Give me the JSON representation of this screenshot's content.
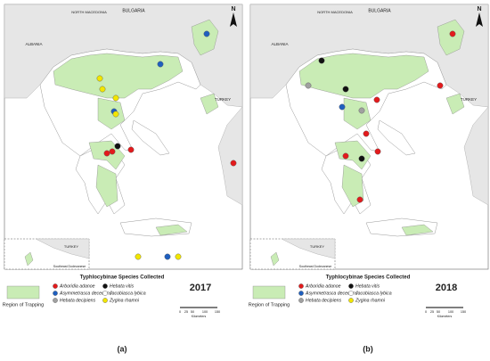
{
  "map_labels": {
    "bulgaria": "BULGARIA",
    "north_macedonia": "NORTH MACEDONIA",
    "albania": "ALBANIA",
    "turkey": "TURKEY",
    "inset_turkey": "TURKEY",
    "north": "N",
    "inset": "Southeast Dodecanese"
  },
  "legend": {
    "title": "Typhlocybinae Species Collected",
    "region": "Region of Trapping",
    "species": [
      {
        "name": "Arboridia adanoe",
        "color": "#e31a1c"
      },
      {
        "name": "Asymmetrasca decedens",
        "color": "#1f5fbf"
      },
      {
        "name": "Hebata decipiens",
        "color": "#a0a0a0"
      },
      {
        "name": "Hebata vitis",
        "color": "#111111"
      },
      {
        "name": "Jacobiasca lybica",
        "color": "#ffffff"
      },
      {
        "name": "Zygina rhamni",
        "color": "#f2e600"
      }
    ],
    "scale": [
      "0",
      "25",
      "50",
      "100",
      "150"
    ],
    "scale_unit": "Kilometers"
  },
  "panels": [
    {
      "year": "2017",
      "caption": "(a)"
    },
    {
      "year": "2018",
      "caption": "(b)"
    }
  ]
}
